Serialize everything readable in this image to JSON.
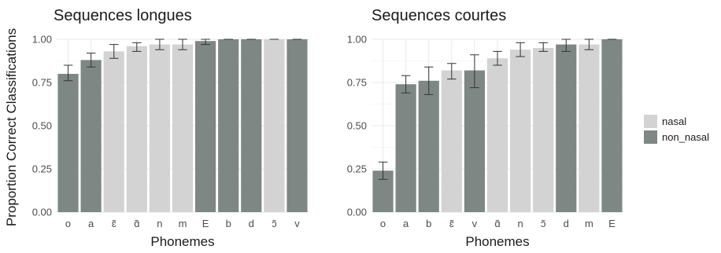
{
  "colors": {
    "nasal": "#d3d3d3",
    "non_nasal": "#7f8785"
  },
  "y_axis_title": "Proportion Correct Classifications",
  "legend": {
    "items": [
      {
        "key": "nasal",
        "label": "nasal"
      },
      {
        "key": "non_nasal",
        "label": "non_nasal"
      }
    ]
  },
  "chart_data": [
    {
      "type": "bar",
      "title": "Sequences longues",
      "xlabel": "Phonemes",
      "ylim": [
        0,
        1
      ],
      "yticks": [
        "0.00",
        "0.25",
        "0.50",
        "0.75",
        "1.00"
      ],
      "grid": true,
      "categories": [
        "o",
        "a",
        "ɛ̃",
        "ɑ̃",
        "n",
        "m",
        "E",
        "b",
        "d",
        "ɔ̃",
        "v"
      ],
      "values": [
        0.8,
        0.88,
        0.93,
        0.96,
        0.97,
        0.97,
        0.99,
        1.0,
        1.0,
        1.0,
        1.0
      ],
      "error_low": [
        0.76,
        0.84,
        0.89,
        0.93,
        0.94,
        0.94,
        0.97,
        1.0,
        1.0,
        1.0,
        1.0
      ],
      "error_high": [
        0.85,
        0.92,
        0.97,
        0.98,
        1.0,
        1.0,
        1.0,
        1.0,
        1.0,
        1.0,
        1.0
      ],
      "groups": [
        "non_nasal",
        "non_nasal",
        "nasal",
        "nasal",
        "nasal",
        "nasal",
        "non_nasal",
        "non_nasal",
        "non_nasal",
        "nasal",
        "non_nasal"
      ]
    },
    {
      "type": "bar",
      "title": "Sequences courtes",
      "xlabel": "Phonemes",
      "ylim": [
        0,
        1
      ],
      "yticks": [
        "0.00",
        "0.25",
        "0.50",
        "0.75",
        "1.00"
      ],
      "grid": true,
      "categories": [
        "o",
        "a",
        "b",
        "ɛ̃",
        "v",
        "ɑ̃",
        "n",
        "ɔ̃",
        "d",
        "m",
        "E"
      ],
      "values": [
        0.24,
        0.74,
        0.76,
        0.82,
        0.82,
        0.89,
        0.94,
        0.95,
        0.97,
        0.97,
        1.0
      ],
      "error_low": [
        0.19,
        0.69,
        0.68,
        0.77,
        0.72,
        0.85,
        0.9,
        0.93,
        0.93,
        0.94,
        1.0
      ],
      "error_high": [
        0.29,
        0.79,
        0.84,
        0.86,
        0.91,
        0.93,
        0.98,
        0.98,
        1.0,
        1.0,
        1.0
      ],
      "groups": [
        "non_nasal",
        "non_nasal",
        "non_nasal",
        "nasal",
        "non_nasal",
        "nasal",
        "nasal",
        "nasal",
        "non_nasal",
        "nasal",
        "non_nasal"
      ]
    }
  ]
}
